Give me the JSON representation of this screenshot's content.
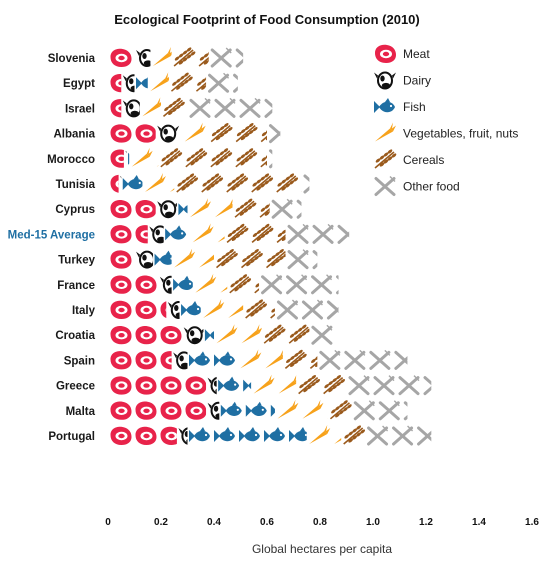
{
  "chart_data": {
    "type": "bar",
    "stacked": true,
    "orientation": "horizontal",
    "title": "Ecological Footprint of Food Consumption (2010)",
    "xlabel": "Global hectares per capita",
    "xlim": [
      0,
      1.6
    ],
    "xticks": [
      "0",
      "0.2",
      "0.4",
      "0.6",
      "0.8",
      "1.0",
      "1.2",
      "1.4",
      "1.6"
    ],
    "categories": [
      "Slovenia",
      "Egypt",
      "Israel",
      "Albania",
      "Morocco",
      "Tunisia",
      "Cyprus",
      "Med-15 Average",
      "Turkey",
      "France",
      "Italy",
      "Croatia",
      "Spain",
      "Greece",
      "Malta",
      "Portugal"
    ],
    "highlight_category": "Med-15 Average",
    "legend_position": "top-right",
    "series": [
      {
        "name": "Meat",
        "color": "#e8234a",
        "icon": "meat-icon",
        "values": [
          0.1,
          0.05,
          0.05,
          0.18,
          0.06,
          0.04,
          0.18,
          0.15,
          0.1,
          0.19,
          0.22,
          0.28,
          0.24,
          0.37,
          0.37,
          0.26
        ]
      },
      {
        "name": "Dairy",
        "color": "#111111",
        "icon": "cow-icon",
        "values": [
          0.06,
          0.05,
          0.07,
          0.1,
          0.01,
          0.01,
          0.08,
          0.06,
          0.07,
          0.05,
          0.05,
          0.08,
          0.06,
          0.04,
          0.05,
          0.04
        ]
      },
      {
        "name": "Fish",
        "color": "#1f6fa3",
        "icon": "fish-icon",
        "values": [
          0.0,
          0.05,
          0.0,
          0.0,
          0.01,
          0.08,
          0.04,
          0.1,
          0.07,
          0.08,
          0.08,
          0.04,
          0.19,
          0.13,
          0.21,
          0.45
        ]
      },
      {
        "name": "Vegetables, fruit, nuts",
        "color": "#f7a21b",
        "icon": "carrot-icon",
        "values": [
          0.08,
          0.08,
          0.08,
          0.1,
          0.11,
          0.12,
          0.17,
          0.13,
          0.16,
          0.13,
          0.16,
          0.18,
          0.17,
          0.17,
          0.2,
          0.13
        ]
      },
      {
        "name": "Cereals",
        "color": "#9a5a1c",
        "icon": "wheat-icon",
        "values": [
          0.14,
          0.14,
          0.1,
          0.22,
          0.41,
          0.48,
          0.14,
          0.23,
          0.27,
          0.12,
          0.12,
          0.18,
          0.13,
          0.19,
          0.09,
          0.09
        ]
      },
      {
        "name": "Other food",
        "color": "#a6a6a6",
        "icon": "fork-knife-icon",
        "values": [
          0.13,
          0.12,
          0.32,
          0.05,
          0.02,
          0.03,
          0.12,
          0.24,
          0.12,
          0.3,
          0.24,
          0.1,
          0.34,
          0.32,
          0.21,
          0.25
        ]
      }
    ]
  }
}
